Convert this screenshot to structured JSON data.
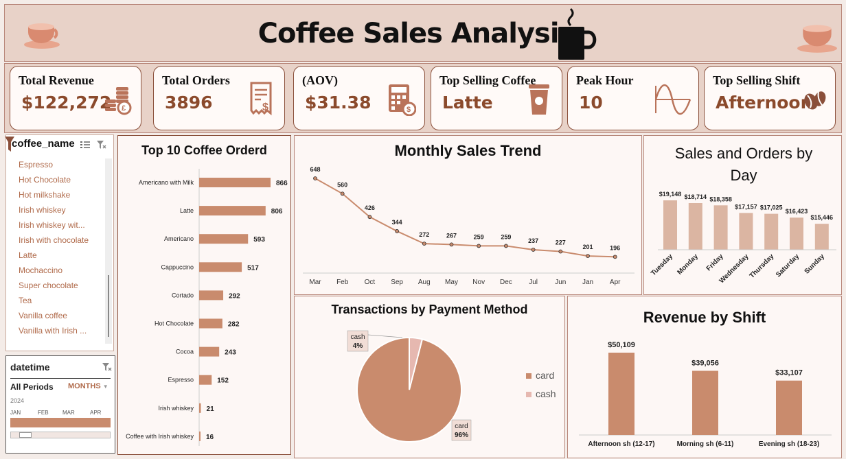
{
  "header": {
    "title": "Coffee Sales Analysis"
  },
  "kpis": [
    {
      "label": "Total Revenue",
      "value": "$122,272",
      "icon": "coins-icon"
    },
    {
      "label": "Total Orders",
      "value": "3896",
      "icon": "receipt-icon"
    },
    {
      "label": "(AOV)",
      "value": "$31.38",
      "icon": "calculator-icon"
    },
    {
      "label": "Top Selling Coffee",
      "value": "Latte",
      "icon": "coffee-cup-icon"
    },
    {
      "label": "Peak Hour",
      "value": "10",
      "icon": "wave-icon"
    },
    {
      "label": "Top Selling Shift",
      "value": "Afternoon",
      "icon": "coffee-bean-icon"
    }
  ],
  "slicer": {
    "title": "coffee_name",
    "items": [
      "Espresso",
      "Hot Chocolate",
      "Hot milkshake",
      "Irish whiskey",
      "Irish whiskey wit...",
      "Irish with chocolate",
      "Latte",
      "Mochaccino",
      "Super chocolate",
      "Tea",
      "Vanilla coffee",
      "Vanilla with Irish ..."
    ]
  },
  "date_slicer": {
    "title": "datetime",
    "all_periods": "All Periods",
    "level": "MONTHS",
    "year": "2024",
    "months": [
      "JAN",
      "FEB",
      "MAR",
      "APR"
    ]
  },
  "colors": {
    "bar": "#c98b6d",
    "pie_cash": "#e6b8b0",
    "line": "#c98b6d",
    "day_bar": "#dbb5a2"
  },
  "chart_data": [
    {
      "type": "bar",
      "title": "Top 10 Coffee Orderd",
      "orientation": "horizontal",
      "categories": [
        "Americano with Milk",
        "Latte",
        "Americano",
        "Cappuccino",
        "Cortado",
        "Hot Chocolate",
        "Cocoa",
        "Espresso",
        "Irish whiskey",
        "Coffee with Irish whiskey"
      ],
      "values": [
        866,
        806,
        593,
        517,
        292,
        282,
        243,
        152,
        21,
        16
      ]
    },
    {
      "type": "line",
      "title": "Monthly Sales Trend",
      "categories": [
        "Mar",
        "Feb",
        "Oct",
        "Sep",
        "Aug",
        "May",
        "Nov",
        "Dec",
        "Jul",
        "Jun",
        "Jan",
        "Apr"
      ],
      "values": [
        648,
        560,
        426,
        344,
        272,
        267,
        259,
        259,
        237,
        227,
        201,
        196
      ]
    },
    {
      "type": "bar",
      "title": "Sales and Orders by Day",
      "categories": [
        "Tuesday",
        "Monday",
        "Friday",
        "Wednesday",
        "Thursday",
        "Saturday",
        "Sunday"
      ],
      "values": [
        19148,
        18714,
        18358,
        17157,
        17025,
        16423,
        15446
      ],
      "value_labels": [
        "$19,148",
        "$18,714",
        "$18,358",
        "$17,157",
        "$17,025",
        "$16,423",
        "$15,446"
      ]
    },
    {
      "type": "pie",
      "title": "Transactions by Payment Method",
      "categories": [
        "card",
        "cash"
      ],
      "values": [
        96,
        4
      ],
      "value_labels": [
        "96%",
        "4%"
      ]
    },
    {
      "type": "bar",
      "title": "Revenue by Shift",
      "categories": [
        "Afternoon sh (12-17)",
        "Morning sh (6-11)",
        "Evening sh (18-23)"
      ],
      "values": [
        50109,
        39056,
        33107
      ],
      "value_labels": [
        "$50,109",
        "$39,056",
        "$33,107"
      ]
    }
  ]
}
